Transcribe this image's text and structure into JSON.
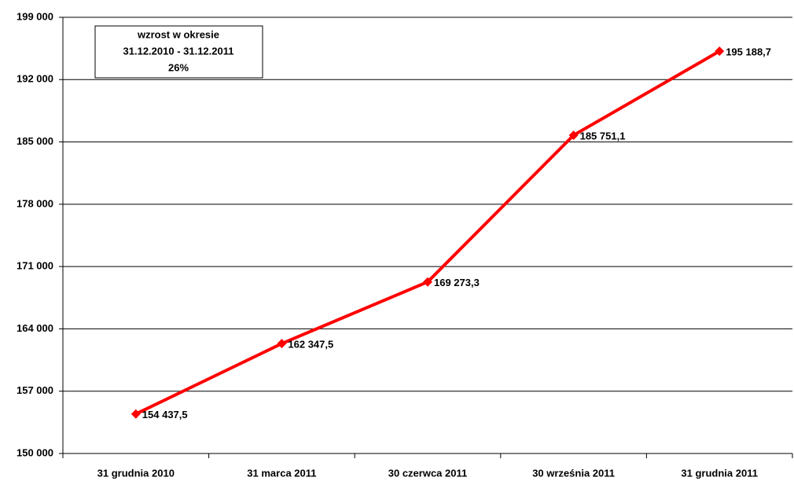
{
  "chart_data": {
    "type": "line",
    "categories": [
      "31 grudnia 2010",
      "31 marca 2011",
      "30 czerwca 2011",
      "30 września 2011",
      "31 grudnia 2011"
    ],
    "series": [
      {
        "name": null,
        "color": "#ff0000",
        "values": [
          154437.5,
          162347.5,
          169273.3,
          185751.1,
          195188.7
        ],
        "value_labels": [
          "154 437,5",
          "162 347,5",
          "169 273,3",
          "185 751,1",
          "195 188,7"
        ]
      }
    ],
    "ylim": [
      150000,
      199000
    ],
    "yticks": [
      {
        "value": 150000,
        "label": "150 000"
      },
      {
        "value": 157000,
        "label": "157 000"
      },
      {
        "value": 164000,
        "label": "164 000"
      },
      {
        "value": 171000,
        "label": "171 000"
      },
      {
        "value": 178000,
        "label": "178 000"
      },
      {
        "value": 185000,
        "label": "185 000"
      },
      {
        "value": 192000,
        "label": "192 000"
      },
      {
        "value": 199000,
        "label": "199 000"
      }
    ],
    "grid": true,
    "annotation": [
      "wzrost w okresie",
      "31.12.2010 - 31.12.2011",
      "26%"
    ]
  }
}
